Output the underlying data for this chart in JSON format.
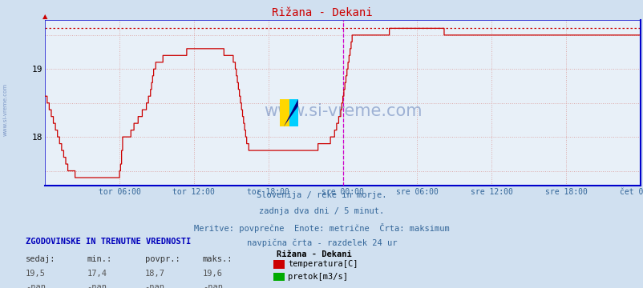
{
  "title": "Rižana - Dekani",
  "title_color": "#cc0000",
  "bg_color": "#d0e0f0",
  "plot_bg_color": "#e8f0f8",
  "grid_color": "#ddaaaa",
  "line_color": "#cc0000",
  "vline_color": "#cc00cc",
  "xlabel_color": "#336699",
  "watermark_color": "#4466aa",
  "x_tick_labels": [
    "tor 06:00",
    "tor 12:00",
    "tor 18:00",
    "sre 00:00",
    "sre 06:00",
    "sre 12:00",
    "sre 18:00",
    "čet 00:00"
  ],
  "x_tick_positions": [
    72,
    144,
    216,
    288,
    360,
    432,
    504,
    576
  ],
  "y_ticks": [
    18,
    19
  ],
  "ylim_min": 17.28,
  "ylim_max": 19.72,
  "xlim_min": 0,
  "xlim_max": 576,
  "max_value": 19.6,
  "vline_pos": 288,
  "subtitle1": "Slovenija / reke in morje.",
  "subtitle2": "zadnja dva dni / 5 minut.",
  "subtitle3": "Meritve: povprečne  Enote: metrične  Črta: maksimum",
  "subtitle4": "navpična črta - razdelek 24 ur",
  "legend_title": "Rižana - Dekani",
  "leg1_label": "temperatura[C]",
  "leg1_color": "#cc0000",
  "leg2_label": "pretok[m3/s]",
  "leg2_color": "#00aa00",
  "hist_title": "ZGODOVINSKE IN TRENUTNE VREDNOSTI",
  "col_headers": [
    "sedaj:",
    "min.:",
    "povpr.:",
    "maks.:"
  ],
  "row1": [
    "19,5",
    "17,4",
    "18,7",
    "19,6"
  ],
  "row2": [
    "-nan",
    "-nan",
    "-nan",
    "-nan"
  ],
  "watermark": "www.si-vreme.com",
  "left_label": "www.si-vreme.com",
  "temp_data": [
    18.6,
    18.6,
    18.5,
    18.5,
    18.4,
    18.4,
    18.3,
    18.3,
    18.2,
    18.2,
    18.1,
    18.1,
    18.0,
    18.0,
    17.9,
    17.9,
    17.8,
    17.8,
    17.7,
    17.7,
    17.6,
    17.6,
    17.5,
    17.5,
    17.5,
    17.5,
    17.5,
    17.5,
    17.5,
    17.4,
    17.4,
    17.4,
    17.4,
    17.4,
    17.4,
    17.4,
    17.4,
    17.4,
    17.4,
    17.4,
    17.4,
    17.4,
    17.4,
    17.4,
    17.4,
    17.4,
    17.4,
    17.4,
    17.4,
    17.4,
    17.4,
    17.4,
    17.4,
    17.4,
    17.4,
    17.4,
    17.4,
    17.4,
    17.4,
    17.4,
    17.4,
    17.4,
    17.4,
    17.4,
    17.4,
    17.4,
    17.4,
    17.4,
    17.4,
    17.4,
    17.4,
    17.4,
    17.5,
    17.6,
    17.8,
    18.0,
    18.0,
    18.0,
    18.0,
    18.0,
    18.0,
    18.0,
    18.0,
    18.1,
    18.1,
    18.1,
    18.2,
    18.2,
    18.2,
    18.2,
    18.3,
    18.3,
    18.3,
    18.3,
    18.4,
    18.4,
    18.4,
    18.4,
    18.5,
    18.5,
    18.6,
    18.6,
    18.7,
    18.8,
    18.9,
    19.0,
    19.0,
    19.1,
    19.1,
    19.1,
    19.1,
    19.1,
    19.1,
    19.1,
    19.2,
    19.2,
    19.2,
    19.2,
    19.2,
    19.2,
    19.2,
    19.2,
    19.2,
    19.2,
    19.2,
    19.2,
    19.2,
    19.2,
    19.2,
    19.2,
    19.2,
    19.2,
    19.2,
    19.2,
    19.2,
    19.2,
    19.2,
    19.3,
    19.3,
    19.3,
    19.3,
    19.3,
    19.3,
    19.3,
    19.3,
    19.3,
    19.3,
    19.3,
    19.3,
    19.3,
    19.3,
    19.3,
    19.3,
    19.3,
    19.3,
    19.3,
    19.3,
    19.3,
    19.3,
    19.3,
    19.3,
    19.3,
    19.3,
    19.3,
    19.3,
    19.3,
    19.3,
    19.3,
    19.3,
    19.3,
    19.3,
    19.3,
    19.3,
    19.2,
    19.2,
    19.2,
    19.2,
    19.2,
    19.2,
    19.2,
    19.2,
    19.2,
    19.1,
    19.1,
    19.0,
    18.9,
    18.8,
    18.7,
    18.6,
    18.5,
    18.4,
    18.3,
    18.2,
    18.1,
    18.0,
    17.9,
    17.9,
    17.8,
    17.8,
    17.8,
    17.8,
    17.8,
    17.8,
    17.8,
    17.8,
    17.8,
    17.8,
    17.8,
    17.8,
    17.8,
    17.8,
    17.8,
    17.8,
    17.8,
    17.8,
    17.8,
    17.8,
    17.8,
    17.8,
    17.8,
    17.8,
    17.8,
    17.8,
    17.8,
    17.8,
    17.8,
    17.8,
    17.8,
    17.8,
    17.8,
    17.8,
    17.8,
    17.8,
    17.8,
    17.8,
    17.8,
    17.8,
    17.8,
    17.8,
    17.8,
    17.8,
    17.8,
    17.8,
    17.8,
    17.8,
    17.8,
    17.8,
    17.8,
    17.8,
    17.8,
    17.8,
    17.8,
    17.8,
    17.8,
    17.8,
    17.8,
    17.8,
    17.8,
    17.8,
    17.8,
    17.8,
    17.8,
    17.8,
    17.8,
    17.9,
    17.9,
    17.9,
    17.9,
    17.9,
    17.9,
    17.9,
    17.9,
    17.9,
    17.9,
    17.9,
    17.9,
    18.0,
    18.0,
    18.0,
    18.0,
    18.1,
    18.1,
    18.2,
    18.2,
    18.3,
    18.3,
    18.4,
    18.5,
    18.6,
    18.7,
    18.8,
    18.9,
    19.0,
    19.1,
    19.2,
    19.3,
    19.4,
    19.5,
    19.5,
    19.5,
    19.5,
    19.5,
    19.5,
    19.5,
    19.5,
    19.5,
    19.5,
    19.5,
    19.5,
    19.5,
    19.5,
    19.5,
    19.5,
    19.5,
    19.5,
    19.5,
    19.5,
    19.5,
    19.5,
    19.5,
    19.5,
    19.5,
    19.5,
    19.5,
    19.5,
    19.5,
    19.5,
    19.5,
    19.5,
    19.5,
    19.5,
    19.5,
    19.5,
    19.6,
    19.6,
    19.6,
    19.6,
    19.6,
    19.6,
    19.6,
    19.6,
    19.6,
    19.6,
    19.6,
    19.6,
    19.6,
    19.6,
    19.6,
    19.6,
    19.6,
    19.6,
    19.6,
    19.6,
    19.6,
    19.6,
    19.6,
    19.6,
    19.6,
    19.6,
    19.6,
    19.6,
    19.6,
    19.6,
    19.6,
    19.6,
    19.6,
    19.6,
    19.6,
    19.6,
    19.6,
    19.6,
    19.6,
    19.6,
    19.6,
    19.6,
    19.6,
    19.6,
    19.6,
    19.6,
    19.6,
    19.6,
    19.6,
    19.6,
    19.6,
    19.6,
    19.6,
    19.5,
    19.5,
    19.5,
    19.5,
    19.5,
    19.5,
    19.5,
    19.5,
    19.5,
    19.5,
    19.5,
    19.5,
    19.5,
    19.5,
    19.5,
    19.5,
    19.5,
    19.5,
    19.5,
    19.5,
    19.5,
    19.5,
    19.5,
    19.5,
    19.5,
    19.5,
    19.5,
    19.5,
    19.5,
    19.5,
    19.5,
    19.5,
    19.5,
    19.5,
    19.5,
    19.5,
    19.5,
    19.5,
    19.5,
    19.5,
    19.5,
    19.5,
    19.5,
    19.5,
    19.5,
    19.5,
    19.5,
    19.5,
    19.5,
    19.5,
    19.5,
    19.5,
    19.5,
    19.5,
    19.5,
    19.5,
    19.5,
    19.5,
    19.5,
    19.5,
    19.5,
    19.5,
    19.5,
    19.5,
    19.5,
    19.5,
    19.5,
    19.5,
    19.5,
    19.5,
    19.5,
    19.5,
    19.5,
    19.5,
    19.5,
    19.5,
    19.5,
    19.5,
    19.5,
    19.5,
    19.5,
    19.5,
    19.5,
    19.5,
    19.5,
    19.5,
    19.5,
    19.5,
    19.5,
    19.5,
    19.5,
    19.5,
    19.5,
    19.5,
    19.5,
    19.5,
    19.5,
    19.5,
    19.5,
    19.5,
    19.5,
    19.5,
    19.5,
    19.5,
    19.5,
    19.5,
    19.5,
    19.5,
    19.5,
    19.5,
    19.5,
    19.5,
    19.5,
    19.5,
    19.5,
    19.5,
    19.5,
    19.5,
    19.5,
    19.5,
    19.5,
    19.5,
    19.5,
    19.5,
    19.5,
    19.5,
    19.5,
    19.5,
    19.5,
    19.5,
    19.5,
    19.5,
    19.5,
    19.5,
    19.5,
    19.5,
    19.5,
    19.5,
    19.5,
    19.5,
    19.5,
    19.5,
    19.5,
    19.5,
    19.5,
    19.5,
    19.5,
    19.5,
    19.5,
    19.5,
    19.5,
    19.5,
    19.5,
    19.5,
    19.5,
    19.5,
    19.5,
    19.5,
    19.5,
    19.5,
    19.5,
    19.5,
    19.5,
    19.5,
    19.5,
    19.5,
    19.5,
    19.5,
    19.5,
    19.5,
    19.5,
    19.5,
    19.5,
    19.5,
    19.5,
    19.5,
    19.5,
    19.5,
    19.5,
    19.5
  ]
}
